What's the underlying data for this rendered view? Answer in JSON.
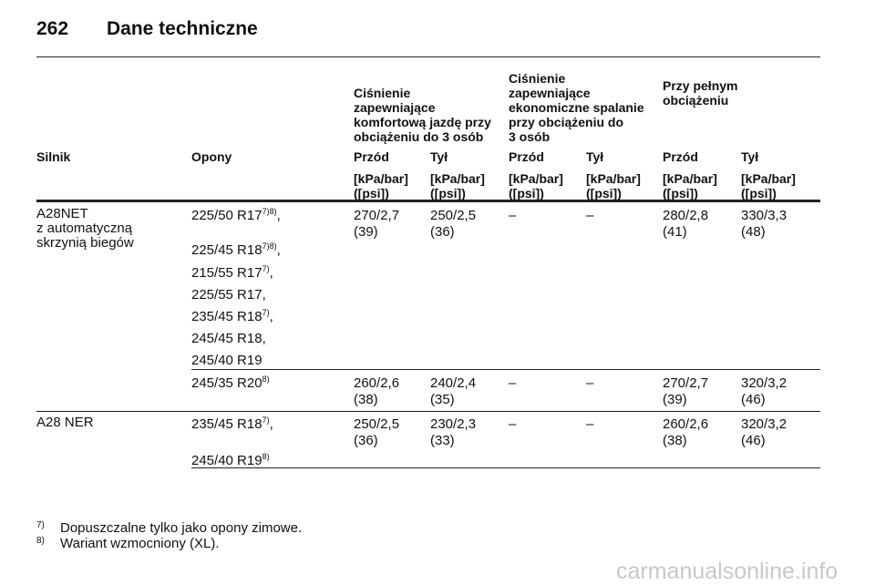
{
  "header": {
    "page_number": "262",
    "title": "Dane techniczne"
  },
  "table": {
    "group_headers": [
      {
        "lines": [
          "Ciśnienie",
          "zapewniające",
          "komfortową jazdę przy",
          "obciążeniu do 3 osób"
        ]
      },
      {
        "lines": [
          "Ciśnienie",
          "zapewniające",
          "ekonomiczne spalanie",
          "przy obciążeniu do",
          "3 osób"
        ]
      },
      {
        "lines": [
          "Przy pełnym",
          "obciążeniu"
        ]
      }
    ],
    "columns": [
      "Silnik",
      "Opony",
      "Przód",
      "Tył",
      "Przód",
      "Tył",
      "Przód",
      "Tył"
    ],
    "units": [
      {
        "unit": "[kPa/bar]",
        "psi": "([psi])"
      },
      {
        "unit": "[kPa/bar]",
        "psi": "([psi])"
      },
      {
        "unit": "[kPa/bar]",
        "psi": "([psi])"
      },
      {
        "unit": "[kPa/bar]",
        "psi": "([psi])"
      },
      {
        "unit": "[kPa/bar]",
        "psi": "([psi])"
      },
      {
        "unit": "[kPa/bar]",
        "psi": "([psi])"
      }
    ],
    "rows": [
      {
        "engine": [
          "A28NET",
          "z automatyczną",
          "skrzynią biegów"
        ],
        "tires": [
          {
            "text": "225/50 R17",
            "sup": "7)8)",
            "suffix": ","
          },
          {
            "text": "225/45 R18",
            "sup": "7)8)",
            "suffix": ","
          },
          {
            "text": "215/55 R17",
            "sup": "7)",
            "suffix": ","
          },
          {
            "text": "225/55 R17,"
          },
          {
            "text": "235/45 R18",
            "sup": "7)",
            "suffix": ","
          },
          {
            "text": "245/45 R18,"
          },
          {
            "text": "245/40 R19"
          }
        ],
        "values": [
          {
            "kpa_bar": "270/2,7",
            "psi": "(39)"
          },
          {
            "kpa_bar": "250/2,5",
            "psi": "(36)"
          },
          "–",
          "–",
          {
            "kpa_bar": "280/2,8",
            "psi": "(41)"
          },
          {
            "kpa_bar": "330/3,3",
            "psi": "(48)"
          }
        ]
      },
      {
        "tires": [
          {
            "text": "245/35 R20",
            "sup": "8)"
          }
        ],
        "values": [
          {
            "kpa_bar": "260/2,6",
            "psi": "(38)"
          },
          {
            "kpa_bar": "240/2,4",
            "psi": "(35)"
          },
          "–",
          "–",
          {
            "kpa_bar": "270/2,7",
            "psi": "(39)"
          },
          {
            "kpa_bar": "320/3,2",
            "psi": "(46)"
          }
        ]
      },
      {
        "engine": [
          "A28 NER"
        ],
        "tires": [
          {
            "text": "235/45 R18",
            "sup": "7)",
            "suffix": ","
          },
          {
            "text": "245/40 R19",
            "sup": "8)"
          }
        ],
        "values": [
          {
            "kpa_bar": "250/2,5",
            "psi": "(36)"
          },
          {
            "kpa_bar": "230/2,3",
            "psi": "(33)"
          },
          "–",
          "–",
          {
            "kpa_bar": "260/2,6",
            "psi": "(38)"
          },
          {
            "kpa_bar": "320/3,2",
            "psi": "(46)"
          }
        ]
      }
    ]
  },
  "footnotes": [
    {
      "marker": "7)",
      "text": "Dopuszczalne tylko jako opony zimowe."
    },
    {
      "marker": "8)",
      "text": "Wariant wzmocniony (XL)."
    }
  ],
  "watermark": "carmanualsonline.info"
}
